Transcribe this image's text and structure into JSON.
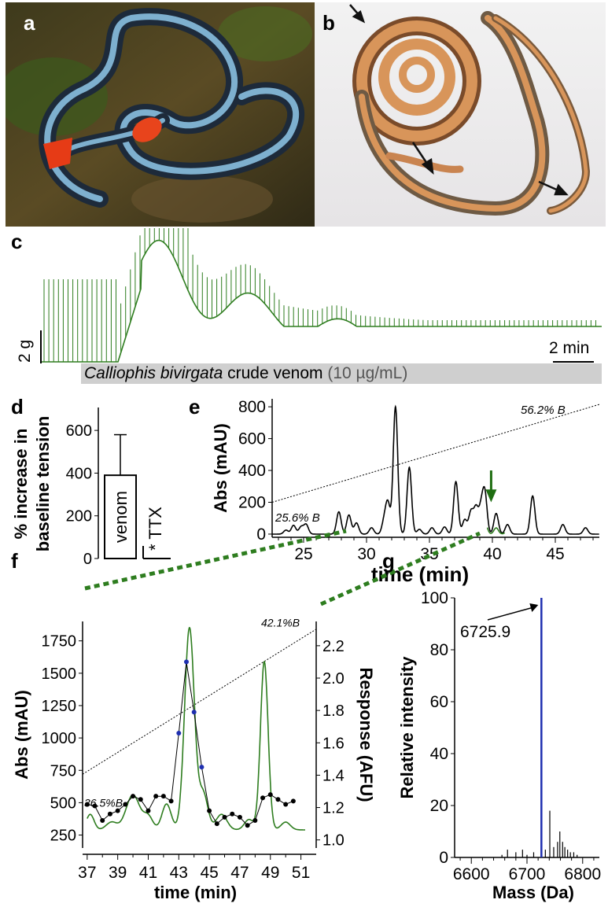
{
  "panel_labels": {
    "a": "a",
    "b": "b",
    "c": "c",
    "d": "d",
    "e": "e",
    "f": "f",
    "g": "g"
  },
  "colors": {
    "trace_green": "#2e7d1f",
    "arrow_green": "#1f6e12",
    "mass_blue": "#1f2fb0",
    "bar_grey": "#cfcfcf",
    "snake_blue": "#9fd0ee",
    "snake_red": "#e8401c",
    "snake_orange": "#d8955a"
  },
  "panel_c": {
    "scale_y": "2 g",
    "scale_x": "2 min",
    "bar_label_italic": "Calliophis bivirgata",
    "bar_label_rest": " crude venom ",
    "bar_label_conc": "(10 µg/mL)"
  },
  "chart_data": [
    {
      "id": "d",
      "type": "bar",
      "ylabel_line1": "% increase in",
      "ylabel_line2": "baseline tension",
      "yticks": [
        0,
        200,
        400,
        600
      ],
      "ylim": [
        0,
        700
      ],
      "categories": [
        "venom",
        "TTX"
      ],
      "values": [
        390,
        0
      ],
      "errors": [
        190,
        null
      ],
      "annotations": [
        "*"
      ]
    },
    {
      "id": "e",
      "type": "line",
      "ylabel": "Abs (mAU)",
      "xlabel": "time (min)",
      "xticks": [
        25,
        30,
        35,
        40,
        45
      ],
      "yticks": [
        0,
        200,
        400,
        600,
        800
      ],
      "xlim": [
        22.5,
        48.5
      ],
      "ylim": [
        -20,
        850
      ],
      "gradient_labels": [
        "25.6% B",
        "56.2% B"
      ],
      "peaks": [
        {
          "t": 23.6,
          "h": 25
        },
        {
          "t": 24.2,
          "h": 55
        },
        {
          "t": 24.8,
          "h": 45
        },
        {
          "t": 25.2,
          "h": 60
        },
        {
          "t": 27.8,
          "h": 140
        },
        {
          "t": 28.6,
          "h": 120
        },
        {
          "t": 29.2,
          "h": 70
        },
        {
          "t": 30.4,
          "h": 40
        },
        {
          "t": 31.4,
          "h": 80
        },
        {
          "t": 31.7,
          "h": 190
        },
        {
          "t": 32.3,
          "h": 800
        },
        {
          "t": 33.4,
          "h": 420
        },
        {
          "t": 34.2,
          "h": 30
        },
        {
          "t": 35.2,
          "h": 40
        },
        {
          "t": 36.2,
          "h": 45
        },
        {
          "t": 37.1,
          "h": 330
        },
        {
          "t": 37.8,
          "h": 90
        },
        {
          "t": 38.3,
          "h": 140
        },
        {
          "t": 38.7,
          "h": 160
        },
        {
          "t": 39.1,
          "h": 150
        },
        {
          "t": 39.4,
          "h": 250
        },
        {
          "t": 40.3,
          "h": 130
        },
        {
          "t": 41.2,
          "h": 60
        },
        {
          "t": 43.2,
          "h": 240
        },
        {
          "t": 45.6,
          "h": 60
        },
        {
          "t": 47.4,
          "h": 40
        }
      ],
      "highlight_range": [
        39.6,
        41.0
      ]
    },
    {
      "id": "f",
      "type": "line",
      "ylabel_left": "Abs (mAU)",
      "ylabel_right": "Response (AFU)",
      "xlabel": "time (min)",
      "xticks": [
        37,
        39,
        41,
        43,
        45,
        47,
        49,
        51
      ],
      "yticks_left": [
        250,
        500,
        750,
        1000,
        1250,
        1500,
        1750
      ],
      "yticks_right": [
        1.0,
        1.2,
        1.4,
        1.6,
        1.8,
        2.0,
        2.2
      ],
      "xlim": [
        36.7,
        52.0
      ],
      "ylim_left": [
        150,
        1900
      ],
      "ylim_right": [
        0.95,
        2.35
      ],
      "gradient_labels": [
        "36.5%B",
        "42.1%B"
      ],
      "abs_series": {
        "baseline": 290,
        "peaks": [
          {
            "t": 37.2,
            "h": 120,
            "w": 0.25
          },
          {
            "t": 38.6,
            "h": 60,
            "w": 0.35
          },
          {
            "t": 40.0,
            "h": 270,
            "w": 0.45
          },
          {
            "t": 41.0,
            "h": 100,
            "w": 0.3
          },
          {
            "t": 42.2,
            "h": 200,
            "w": 0.3
          },
          {
            "t": 43.7,
            "h": 1560,
            "w": 0.32
          },
          {
            "t": 44.6,
            "h": 280,
            "w": 0.3
          },
          {
            "t": 45.8,
            "h": 120,
            "w": 0.35
          },
          {
            "t": 48.6,
            "h": 1300,
            "w": 0.25
          },
          {
            "t": 47.6,
            "h": 80,
            "w": 0.3
          },
          {
            "t": 50.0,
            "h": 60,
            "w": 0.3
          }
        ]
      },
      "response_series": {
        "x": [
          37.0,
          37.5,
          38.0,
          38.5,
          39.0,
          39.5,
          40.0,
          40.5,
          41.0,
          41.5,
          42.0,
          42.5,
          43.0,
          43.5,
          44.0,
          44.5,
          45.0,
          45.5,
          46.0,
          46.5,
          47.0,
          47.5,
          48.0,
          48.5,
          49.0,
          49.5,
          50.0,
          50.5
        ],
        "y": [
          1.22,
          1.21,
          1.12,
          1.16,
          1.18,
          1.22,
          1.27,
          1.25,
          1.18,
          1.27,
          1.27,
          1.24,
          1.66,
          2.1,
          1.79,
          1.45,
          1.18,
          1.1,
          1.14,
          1.16,
          1.14,
          1.09,
          1.12,
          1.26,
          1.28,
          1.25,
          1.22,
          1.24
        ],
        "highlighted": [
          13,
          14,
          15,
          12
        ]
      }
    },
    {
      "id": "g",
      "type": "bar",
      "ylabel": "Relative intensity",
      "xlabel": "Mass (Da)",
      "xticks": [
        6600,
        6700,
        6800
      ],
      "yticks": [
        0,
        20,
        40,
        60,
        80,
        100
      ],
      "xlim": [
        6570,
        6830
      ],
      "ylim": [
        0,
        100
      ],
      "annotation": "6725.9",
      "main_peak": {
        "x": 6725.9,
        "y": 100
      },
      "minor_peaks": [
        {
          "x": 6655,
          "y": 1
        },
        {
          "x": 6665,
          "y": 3
        },
        {
          "x": 6680,
          "y": 2
        },
        {
          "x": 6692,
          "y": 3
        },
        {
          "x": 6700,
          "y": 1
        },
        {
          "x": 6712,
          "y": 2
        },
        {
          "x": 6733,
          "y": 3
        },
        {
          "x": 6741,
          "y": 18
        },
        {
          "x": 6748,
          "y": 4
        },
        {
          "x": 6755,
          "y": 6
        },
        {
          "x": 6759,
          "y": 10
        },
        {
          "x": 6764,
          "y": 6
        },
        {
          "x": 6768,
          "y": 4
        },
        {
          "x": 6773,
          "y": 3
        },
        {
          "x": 6778,
          "y": 2
        },
        {
          "x": 6784,
          "y": 2
        },
        {
          "x": 6790,
          "y": 1
        }
      ]
    }
  ]
}
